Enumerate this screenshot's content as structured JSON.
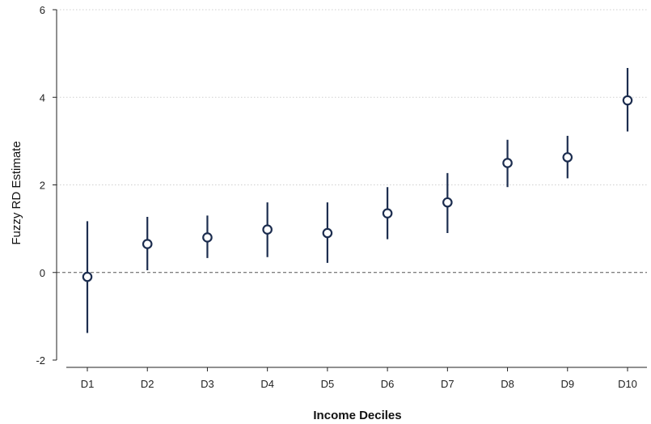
{
  "chart_data": {
    "type": "scatter",
    "subtype": "point-estimate-with-confidence-interval",
    "title": "",
    "xlabel": "Income Deciles",
    "ylabel": "Fuzzy RD Estimate",
    "ylim": [
      -2,
      6
    ],
    "yticks": [
      "-2",
      "0",
      "2",
      "4",
      "6"
    ],
    "categories": [
      "D1",
      "D2",
      "D3",
      "D4",
      "D5",
      "D6",
      "D7",
      "D8",
      "D9",
      "D10"
    ],
    "series": [
      {
        "estimate": [
          -0.1,
          0.65,
          0.8,
          0.98,
          0.9,
          1.35,
          1.6,
          2.5,
          2.63,
          3.93
        ],
        "ci_low": [
          -1.38,
          0.05,
          0.33,
          0.35,
          0.22,
          0.76,
          0.9,
          1.95,
          2.15,
          3.22
        ],
        "ci_high": [
          1.17,
          1.27,
          1.3,
          1.6,
          1.6,
          1.95,
          2.27,
          3.03,
          3.12,
          4.67
        ]
      }
    ],
    "reference_line": {
      "y": 0,
      "style": "dashed"
    },
    "grid": {
      "horizontal": true,
      "vertical": false,
      "style": "dotted"
    },
    "colors": {
      "marker": "#1c2d4f",
      "reference_line": "#555555",
      "grid": "#cfcfcf"
    }
  }
}
